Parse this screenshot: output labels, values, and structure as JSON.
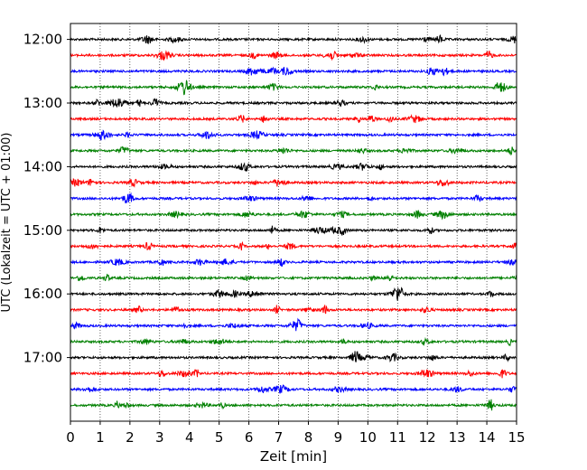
{
  "chart_data": {
    "type": "line",
    "title": "",
    "xlabel": "Zeit  [min]",
    "ylabel": "UTC (Lokalzeit = UTC + 01:00)",
    "xlim": [
      0,
      15
    ],
    "x_ticks": [
      0,
      1,
      2,
      3,
      4,
      5,
      6,
      7,
      8,
      9,
      10,
      11,
      12,
      13,
      14,
      15
    ],
    "x_tick_labels": [
      "0",
      "1",
      "2",
      "3",
      "4",
      "5",
      "6",
      "7",
      "8",
      "9",
      "10",
      "11",
      "12",
      "13",
      "14",
      "15"
    ],
    "x_grid": true,
    "y_grid": false,
    "ylim": [
      "11:45",
      "18:00"
    ],
    "y_ticks": [
      "12:00",
      "13:00",
      "14:00",
      "15:00",
      "16:00",
      "17:00"
    ],
    "trace_interval_minutes": 15,
    "trace_start_times": [
      "12:00",
      "12:15",
      "12:30",
      "12:45",
      "13:00",
      "13:15",
      "13:30",
      "13:45",
      "14:00",
      "14:15",
      "14:30",
      "14:45",
      "15:00",
      "15:15",
      "15:30",
      "15:45",
      "16:00",
      "16:15",
      "16:30",
      "16:45",
      "17:00",
      "17:15",
      "17:30",
      "17:45"
    ],
    "trace_color_cycle": [
      "#000000",
      "#ff0000",
      "#0000ff",
      "#008000"
    ],
    "y_inverted": true
  }
}
